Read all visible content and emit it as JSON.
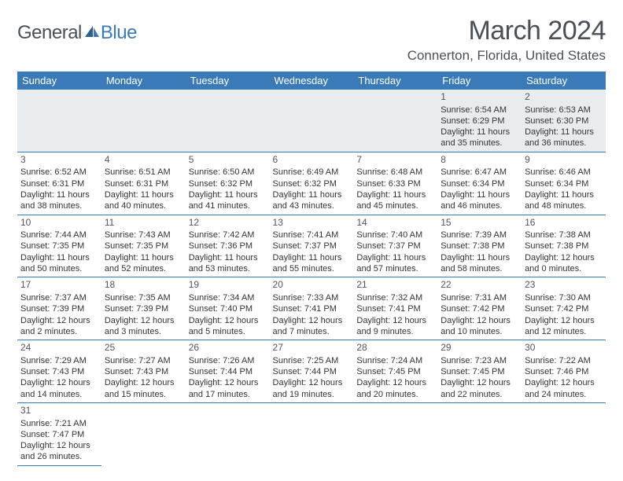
{
  "logo": {
    "text1": "General",
    "text2": "Blue",
    "icon_color": "#3a7ab8"
  },
  "title": "March 2024",
  "location": "Connerton, Florida, United States",
  "header_bg": "#3a7ab8",
  "header_text_color": "#ffffff",
  "empty_bg": "#e9ecef",
  "border_color": "#3a7ab8",
  "text_color": "#333333",
  "daynames": [
    "Sunday",
    "Monday",
    "Tuesday",
    "Wednesday",
    "Thursday",
    "Friday",
    "Saturday"
  ],
  "weeks": [
    [
      null,
      null,
      null,
      null,
      null,
      {
        "n": "1",
        "sr": "Sunrise: 6:54 AM",
        "ss": "Sunset: 6:29 PM",
        "dl": "Daylight: 11 hours and 35 minutes."
      },
      {
        "n": "2",
        "sr": "Sunrise: 6:53 AM",
        "ss": "Sunset: 6:30 PM",
        "dl": "Daylight: 11 hours and 36 minutes."
      }
    ],
    [
      {
        "n": "3",
        "sr": "Sunrise: 6:52 AM",
        "ss": "Sunset: 6:31 PM",
        "dl": "Daylight: 11 hours and 38 minutes."
      },
      {
        "n": "4",
        "sr": "Sunrise: 6:51 AM",
        "ss": "Sunset: 6:31 PM",
        "dl": "Daylight: 11 hours and 40 minutes."
      },
      {
        "n": "5",
        "sr": "Sunrise: 6:50 AM",
        "ss": "Sunset: 6:32 PM",
        "dl": "Daylight: 11 hours and 41 minutes."
      },
      {
        "n": "6",
        "sr": "Sunrise: 6:49 AM",
        "ss": "Sunset: 6:32 PM",
        "dl": "Daylight: 11 hours and 43 minutes."
      },
      {
        "n": "7",
        "sr": "Sunrise: 6:48 AM",
        "ss": "Sunset: 6:33 PM",
        "dl": "Daylight: 11 hours and 45 minutes."
      },
      {
        "n": "8",
        "sr": "Sunrise: 6:47 AM",
        "ss": "Sunset: 6:34 PM",
        "dl": "Daylight: 11 hours and 46 minutes."
      },
      {
        "n": "9",
        "sr": "Sunrise: 6:46 AM",
        "ss": "Sunset: 6:34 PM",
        "dl": "Daylight: 11 hours and 48 minutes."
      }
    ],
    [
      {
        "n": "10",
        "sr": "Sunrise: 7:44 AM",
        "ss": "Sunset: 7:35 PM",
        "dl": "Daylight: 11 hours and 50 minutes."
      },
      {
        "n": "11",
        "sr": "Sunrise: 7:43 AM",
        "ss": "Sunset: 7:35 PM",
        "dl": "Daylight: 11 hours and 52 minutes."
      },
      {
        "n": "12",
        "sr": "Sunrise: 7:42 AM",
        "ss": "Sunset: 7:36 PM",
        "dl": "Daylight: 11 hours and 53 minutes."
      },
      {
        "n": "13",
        "sr": "Sunrise: 7:41 AM",
        "ss": "Sunset: 7:37 PM",
        "dl": "Daylight: 11 hours and 55 minutes."
      },
      {
        "n": "14",
        "sr": "Sunrise: 7:40 AM",
        "ss": "Sunset: 7:37 PM",
        "dl": "Daylight: 11 hours and 57 minutes."
      },
      {
        "n": "15",
        "sr": "Sunrise: 7:39 AM",
        "ss": "Sunset: 7:38 PM",
        "dl": "Daylight: 11 hours and 58 minutes."
      },
      {
        "n": "16",
        "sr": "Sunrise: 7:38 AM",
        "ss": "Sunset: 7:38 PM",
        "dl": "Daylight: 12 hours and 0 minutes."
      }
    ],
    [
      {
        "n": "17",
        "sr": "Sunrise: 7:37 AM",
        "ss": "Sunset: 7:39 PM",
        "dl": "Daylight: 12 hours and 2 minutes."
      },
      {
        "n": "18",
        "sr": "Sunrise: 7:35 AM",
        "ss": "Sunset: 7:39 PM",
        "dl": "Daylight: 12 hours and 3 minutes."
      },
      {
        "n": "19",
        "sr": "Sunrise: 7:34 AM",
        "ss": "Sunset: 7:40 PM",
        "dl": "Daylight: 12 hours and 5 minutes."
      },
      {
        "n": "20",
        "sr": "Sunrise: 7:33 AM",
        "ss": "Sunset: 7:41 PM",
        "dl": "Daylight: 12 hours and 7 minutes."
      },
      {
        "n": "21",
        "sr": "Sunrise: 7:32 AM",
        "ss": "Sunset: 7:41 PM",
        "dl": "Daylight: 12 hours and 9 minutes."
      },
      {
        "n": "22",
        "sr": "Sunrise: 7:31 AM",
        "ss": "Sunset: 7:42 PM",
        "dl": "Daylight: 12 hours and 10 minutes."
      },
      {
        "n": "23",
        "sr": "Sunrise: 7:30 AM",
        "ss": "Sunset: 7:42 PM",
        "dl": "Daylight: 12 hours and 12 minutes."
      }
    ],
    [
      {
        "n": "24",
        "sr": "Sunrise: 7:29 AM",
        "ss": "Sunset: 7:43 PM",
        "dl": "Daylight: 12 hours and 14 minutes."
      },
      {
        "n": "25",
        "sr": "Sunrise: 7:27 AM",
        "ss": "Sunset: 7:43 PM",
        "dl": "Daylight: 12 hours and 15 minutes."
      },
      {
        "n": "26",
        "sr": "Sunrise: 7:26 AM",
        "ss": "Sunset: 7:44 PM",
        "dl": "Daylight: 12 hours and 17 minutes."
      },
      {
        "n": "27",
        "sr": "Sunrise: 7:25 AM",
        "ss": "Sunset: 7:44 PM",
        "dl": "Daylight: 12 hours and 19 minutes."
      },
      {
        "n": "28",
        "sr": "Sunrise: 7:24 AM",
        "ss": "Sunset: 7:45 PM",
        "dl": "Daylight: 12 hours and 20 minutes."
      },
      {
        "n": "29",
        "sr": "Sunrise: 7:23 AM",
        "ss": "Sunset: 7:45 PM",
        "dl": "Daylight: 12 hours and 22 minutes."
      },
      {
        "n": "30",
        "sr": "Sunrise: 7:22 AM",
        "ss": "Sunset: 7:46 PM",
        "dl": "Daylight: 12 hours and 24 minutes."
      }
    ],
    [
      {
        "n": "31",
        "sr": "Sunrise: 7:21 AM",
        "ss": "Sunset: 7:47 PM",
        "dl": "Daylight: 12 hours and 26 minutes."
      },
      null,
      null,
      null,
      null,
      null,
      null
    ]
  ]
}
